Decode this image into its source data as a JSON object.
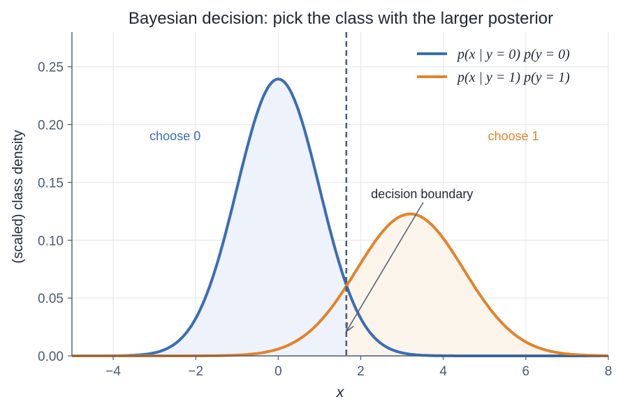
{
  "chart_data": {
    "type": "line",
    "title": "Bayesian decision: pick the class with the larger posterior",
    "xlabel": "x",
    "ylabel": "(scaled) class density",
    "xlim": [
      -5,
      8
    ],
    "ylim": [
      0,
      0.28
    ],
    "xticks": [
      -4,
      -2,
      0,
      2,
      4,
      6,
      8
    ],
    "xtick_labels": [
      "−4",
      "−2",
      "0",
      "2",
      "4",
      "6",
      "8"
    ],
    "yticks": [
      0,
      0.05,
      0.1,
      0.15,
      0.2,
      0.25
    ],
    "ytick_labels": [
      "0.00",
      "0.05",
      "0.10",
      "0.15",
      "0.20",
      "0.25"
    ],
    "grid": true,
    "legend_position": "top-right",
    "series": [
      {
        "name": "p(x | y = 0) p(y = 0)",
        "distribution": "normal",
        "mean": 0,
        "std": 1,
        "prior": 0.6,
        "peak": 0.239,
        "color": "#3b6db5",
        "fill": "#eef2fa"
      },
      {
        "name": "p(x | y = 1) p(y = 1)",
        "distribution": "normal",
        "mean": 3.2,
        "std": 1.3,
        "prior": 0.4,
        "peak": 0.123,
        "color": "#e0842a",
        "fill": "#fbf4ea"
      }
    ],
    "decision_boundary": {
      "x": 1.65,
      "color": "#4b5a70"
    },
    "annotations": [
      {
        "text": "choose 0",
        "x": -2.5,
        "y": 0.19,
        "color": "#3b6db5"
      },
      {
        "text": "choose 1",
        "x": 5.7,
        "y": 0.19,
        "color": "#e0842a"
      },
      {
        "text": "decision boundary",
        "x": 2.25,
        "y": 0.14,
        "arrow_to": [
          1.65,
          0.021
        ]
      }
    ]
  }
}
